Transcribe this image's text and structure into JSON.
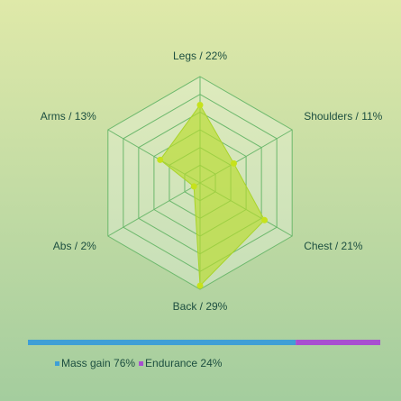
{
  "chart_data": [
    {
      "type": "radar",
      "categories": [
        "Legs / 22%",
        "Shoulders / 11%",
        "Chest / 21%",
        "Back / 29%",
        "Abs / 2%",
        "Arms / 13%"
      ],
      "values": [
        22,
        11,
        21,
        29,
        2,
        13
      ],
      "color": "#b9dc2c",
      "rlim": [
        0,
        30
      ],
      "rticks": [
        5,
        10,
        15,
        20,
        25,
        30
      ],
      "grid": true
    },
    {
      "type": "stacked-bar",
      "series": [
        {
          "name": "Mass gain 76%",
          "color": "#3f9fd6",
          "values": [
            76
          ]
        },
        {
          "name": "Endurance 24%",
          "color": "#a84fd0",
          "values": [
            24
          ]
        }
      ],
      "xlim": [
        0,
        100
      ]
    }
  ]
}
